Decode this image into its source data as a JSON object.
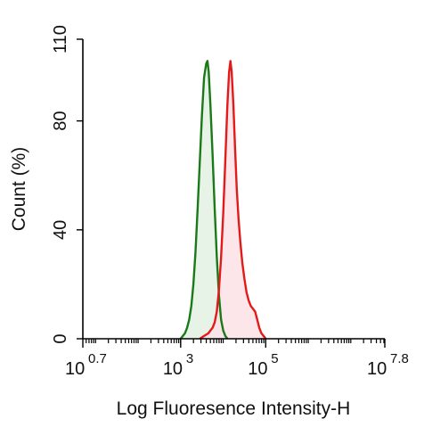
{
  "chart_data": {
    "type": "area",
    "xlabel": "Log Fluoresence Intensity-H",
    "ylabel": "Count  (%)",
    "x_scale": "log",
    "xlim_log10": [
      0.7,
      7.8
    ],
    "ylim": [
      0,
      110
    ],
    "x_ticks": [
      {
        "base": "10",
        "exp": "0.7",
        "log": 0.7
      },
      {
        "base": "10",
        "exp": "3",
        "log": 3
      },
      {
        "base": "10",
        "exp": "5",
        "log": 5
      },
      {
        "base": "10",
        "exp": "7.8",
        "log": 7.8
      }
    ],
    "y_ticks": [
      {
        "label": "0",
        "value": 0
      },
      {
        "label": "40",
        "value": 40
      },
      {
        "label": "80",
        "value": 80
      },
      {
        "label": "110",
        "value": 110
      }
    ],
    "grid": false,
    "legend": "none",
    "series": [
      {
        "color": "#1a7a1a",
        "fill": "#e4f1e4",
        "points_log10": [
          [
            3.0,
            0
          ],
          [
            3.05,
            1
          ],
          [
            3.1,
            2
          ],
          [
            3.15,
            4
          ],
          [
            3.2,
            7
          ],
          [
            3.25,
            12
          ],
          [
            3.3,
            20
          ],
          [
            3.35,
            32
          ],
          [
            3.4,
            48
          ],
          [
            3.45,
            65
          ],
          [
            3.5,
            82
          ],
          [
            3.55,
            96
          ],
          [
            3.6,
            101
          ],
          [
            3.63,
            102
          ],
          [
            3.66,
            98
          ],
          [
            3.7,
            86
          ],
          [
            3.75,
            68
          ],
          [
            3.8,
            48
          ],
          [
            3.85,
            30
          ],
          [
            3.9,
            16
          ],
          [
            3.95,
            7
          ],
          [
            4.0,
            3
          ],
          [
            4.05,
            1
          ],
          [
            4.1,
            0
          ]
        ]
      },
      {
        "color": "#e31a1a",
        "fill": "#fbe2e6",
        "points_log10": [
          [
            3.45,
            0
          ],
          [
            3.55,
            1
          ],
          [
            3.65,
            2
          ],
          [
            3.7,
            3
          ],
          [
            3.75,
            4
          ],
          [
            3.8,
            6
          ],
          [
            3.85,
            10
          ],
          [
            3.9,
            18
          ],
          [
            3.95,
            30
          ],
          [
            4.0,
            46
          ],
          [
            4.05,
            66
          ],
          [
            4.1,
            86
          ],
          [
            4.14,
            98
          ],
          [
            4.17,
            102
          ],
          [
            4.2,
            98
          ],
          [
            4.24,
            86
          ],
          [
            4.28,
            70
          ],
          [
            4.32,
            55
          ],
          [
            4.36,
            44
          ],
          [
            4.4,
            36
          ],
          [
            4.45,
            28
          ],
          [
            4.5,
            22
          ],
          [
            4.55,
            17
          ],
          [
            4.6,
            14
          ],
          [
            4.65,
            12
          ],
          [
            4.7,
            11
          ],
          [
            4.75,
            10
          ],
          [
            4.8,
            7
          ],
          [
            4.85,
            4
          ],
          [
            4.9,
            2
          ],
          [
            4.95,
            1
          ],
          [
            5.0,
            0
          ]
        ]
      }
    ]
  }
}
